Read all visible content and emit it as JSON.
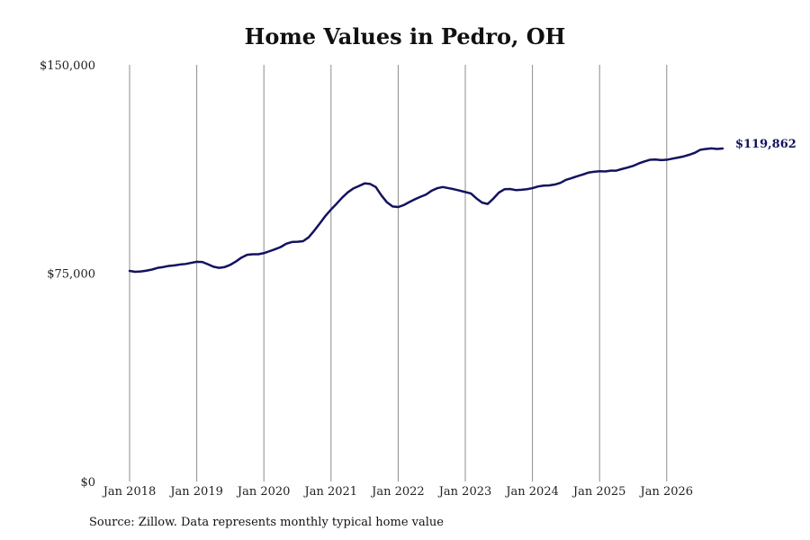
{
  "chart_data": {
    "type": "line",
    "title": "Home Values in Pedro, OH",
    "source": "Source: Zillow. Data represents monthly typical home value",
    "y_ticks": [
      "$0",
      "$75,000",
      "$150,000"
    ],
    "ylim": [
      0,
      150000
    ],
    "x_ticks": [
      "Jan 2018",
      "Jan 2019",
      "Jan 2020",
      "Jan 2021",
      "Jan 2022",
      "Jan 2023",
      "Jan 2024",
      "Jan 2025",
      "Jan 2026"
    ],
    "x_start": "Jan 2018",
    "x_end": "Jul 2026",
    "grid": "vertical",
    "line_color": "#131260",
    "end_label": "$119,862",
    "series": [
      {
        "values": [
          75800,
          75500,
          75600,
          75900,
          76300,
          76900,
          77200,
          77600,
          77800,
          78100,
          78300,
          78700,
          79100,
          79000,
          78200,
          77300,
          76900,
          77200,
          78000,
          79200,
          80600,
          81600,
          81800,
          81800,
          82200,
          82900,
          83600,
          84400,
          85600,
          86200,
          86300,
          86500,
          87900,
          90300,
          92900,
          95600,
          97900,
          100000,
          102200,
          104100,
          105500,
          106400,
          107300,
          107100,
          106000,
          103000,
          100500,
          99000,
          98800,
          99500,
          100600,
          101600,
          102500,
          103300,
          104700,
          105600,
          106000,
          105600,
          105200,
          104700,
          104200,
          103700,
          101900,
          100400,
          99900,
          101800,
          104000,
          105200,
          105300,
          104900,
          105000,
          105200,
          105600,
          106200,
          106500,
          106600,
          106900,
          107500,
          108600,
          109200,
          109900,
          110500,
          111200,
          111500,
          111700,
          111600,
          111900,
          111900,
          112500,
          113000,
          113600,
          114500,
          115200,
          115800,
          115900,
          115700,
          115800,
          116200,
          116600,
          117000,
          117600,
          118300,
          119400,
          119700,
          119900,
          119700,
          119862
        ]
      }
    ]
  }
}
